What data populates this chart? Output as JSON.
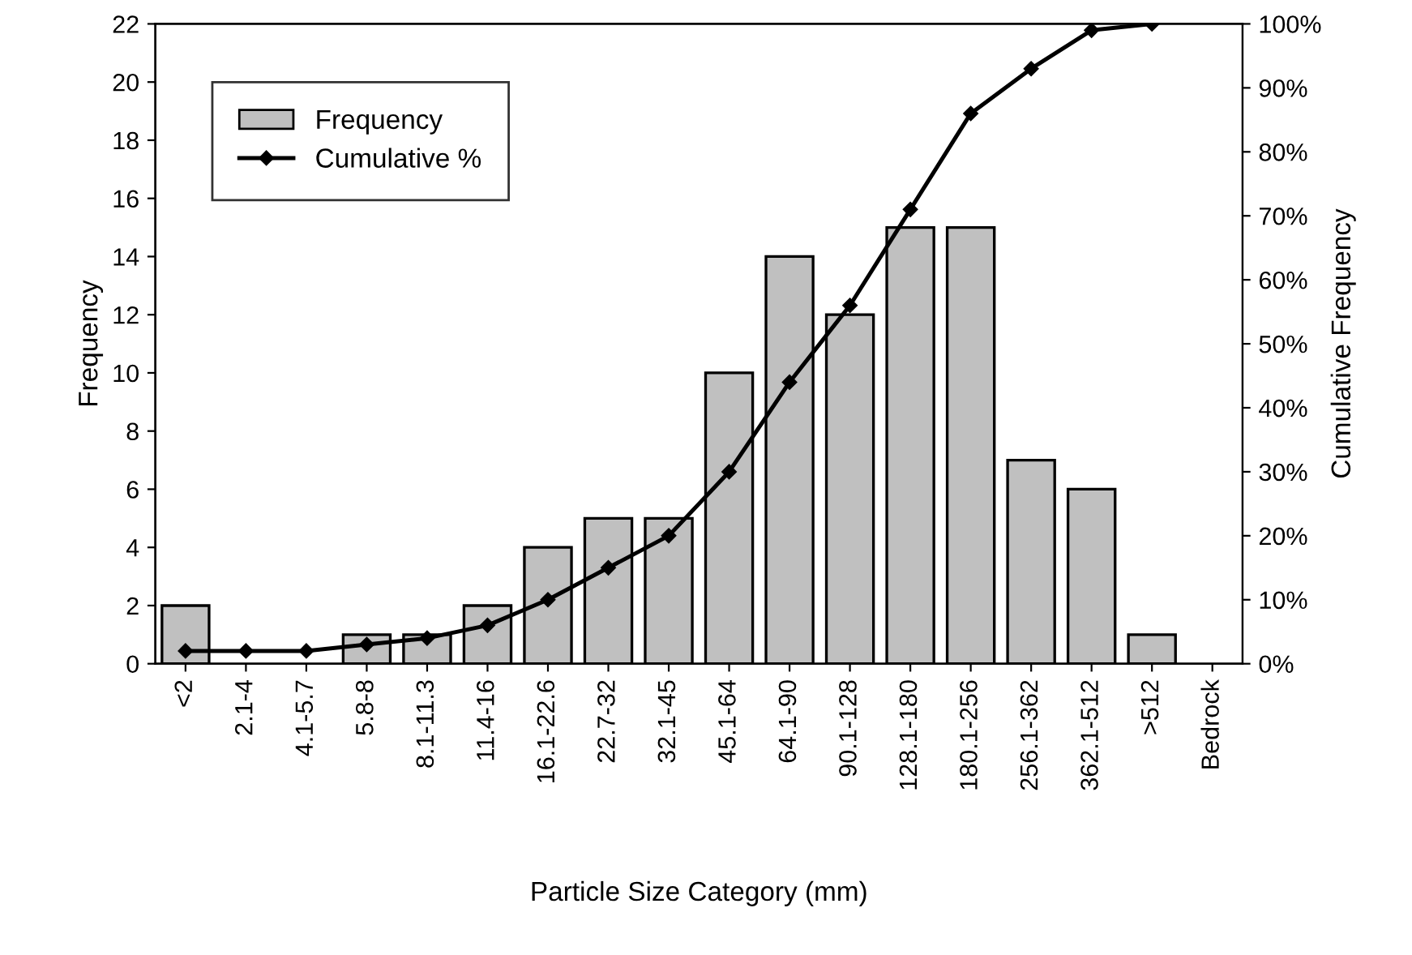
{
  "chart_data": {
    "type": "bar",
    "xlabel": "Particle Size Category (mm)",
    "ylabel": "Frequency",
    "y2label": "Cumulative Frequency",
    "categories": [
      "<2",
      "2.1-4",
      "4.1-5.7",
      "5.8-8",
      "8.1-11.3",
      "11.4-16",
      "16.1-22.6",
      "22.7-32",
      "32.1-45",
      "45.1-64",
      "64.1-90",
      "90.1-128",
      "128.1-180",
      "180.1-256",
      "256.1-362",
      "362.1-512",
      ">512",
      "Bedrock"
    ],
    "series": [
      {
        "name": "Frequency",
        "color": "#c0c0c0",
        "values": [
          2,
          0,
          0,
          1,
          1,
          2,
          4,
          5,
          5,
          10,
          14,
          12,
          15,
          15,
          7,
          6,
          1,
          0
        ]
      },
      {
        "name": "Cumulative %",
        "type": "line",
        "axis": "y2",
        "color": "#000000",
        "marker": "diamond",
        "values": [
          2,
          2,
          2,
          3,
          4,
          6,
          10,
          15,
          20,
          30,
          44,
          56,
          71,
          86,
          93,
          99,
          100,
          null
        ]
      }
    ],
    "ylim": [
      0,
      22
    ],
    "yticks": [
      0,
      2,
      4,
      6,
      8,
      10,
      12,
      14,
      16,
      18,
      20,
      22
    ],
    "y2lim": [
      0,
      100
    ],
    "y2ticks": [
      {
        "value": 0,
        "label": "0%"
      },
      {
        "value": 10,
        "label": "10%"
      },
      {
        "value": 20,
        "label": "20%"
      },
      {
        "value": 30,
        "label": "30%"
      },
      {
        "value": 40,
        "label": "40%"
      },
      {
        "value": 50,
        "label": "50%"
      },
      {
        "value": 60,
        "label": "60%"
      },
      {
        "value": 70,
        "label": "70%"
      },
      {
        "value": 80,
        "label": "80%"
      },
      {
        "value": 90,
        "label": "90%"
      },
      {
        "value": 100,
        "label": "100%"
      }
    ],
    "legend": "top left",
    "grid": false
  }
}
